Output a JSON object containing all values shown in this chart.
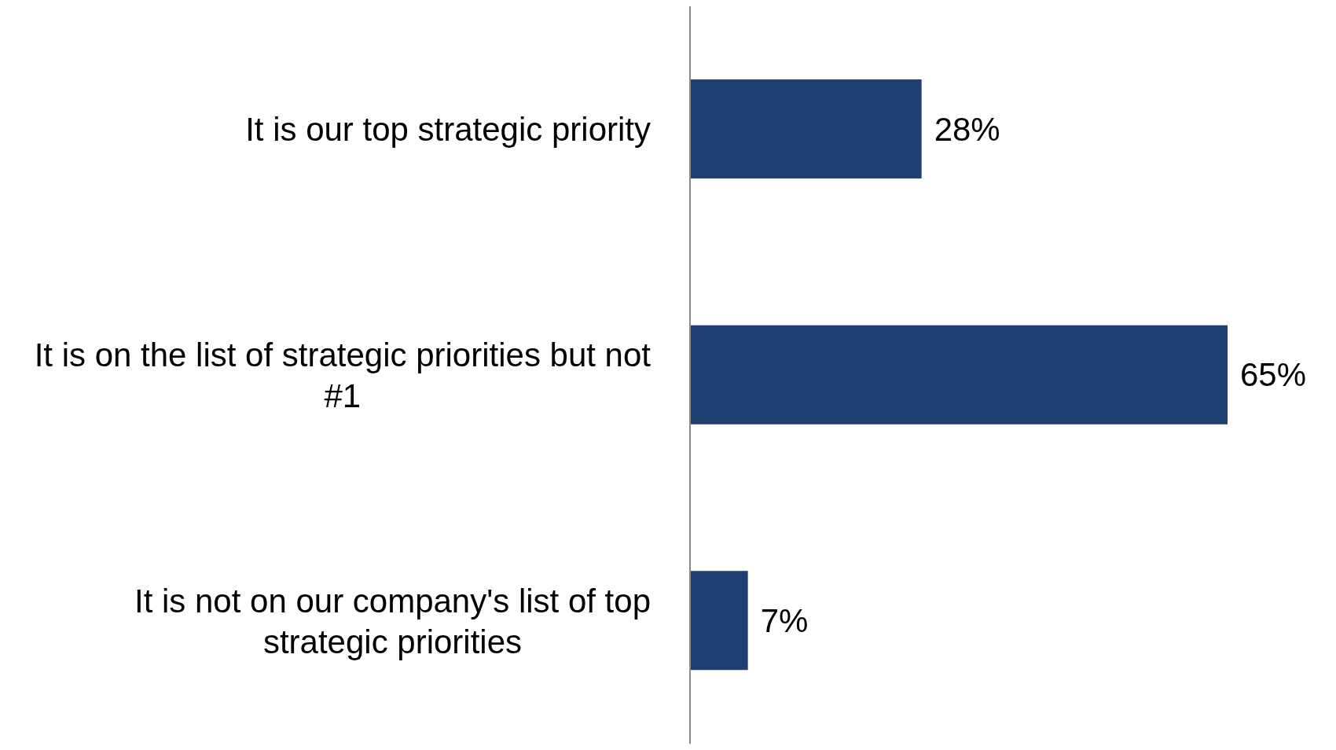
{
  "chart_data": {
    "type": "bar",
    "orientation": "horizontal",
    "categories": [
      "It is our top strategic priority",
      "It is on the list of strategic priorities but not #1",
      "It is not on our company's list of top strategic priorities"
    ],
    "values": [
      28,
      65,
      7
    ],
    "value_labels": [
      "28%",
      "65%",
      "7%"
    ],
    "color": "#1f3f73",
    "grid": false
  }
}
